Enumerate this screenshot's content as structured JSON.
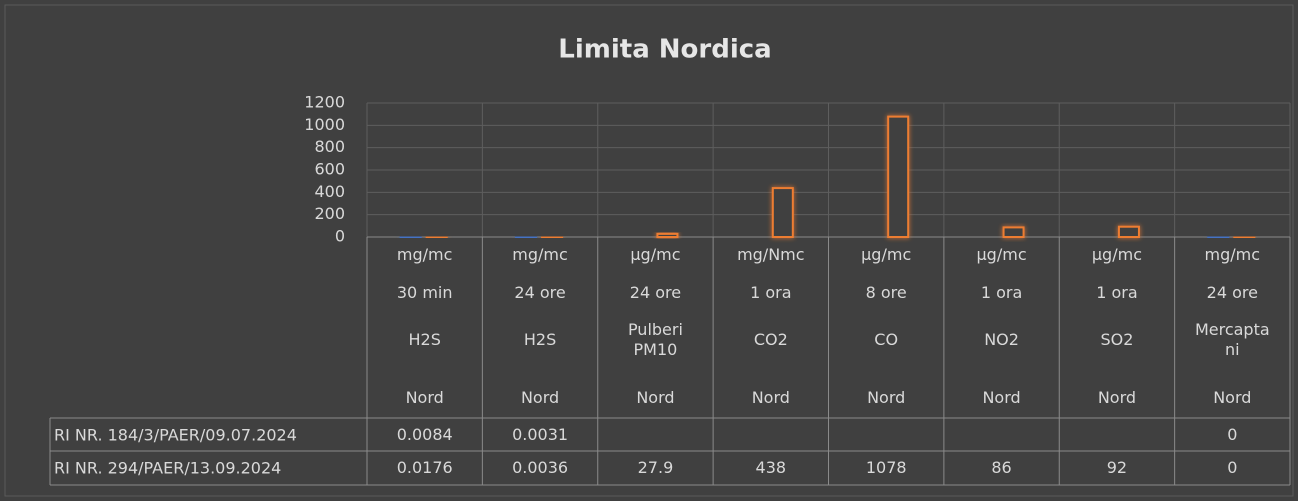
{
  "chart_data": {
    "type": "bar",
    "title": "Limita Nordica",
    "categories": [
      [
        "mg/mc",
        "30 min",
        "H2S",
        "Nord"
      ],
      [
        "mg/mc",
        "24 ore",
        "H2S",
        "Nord"
      ],
      [
        "µg/mc",
        "24 ore",
        "Pulberi PM10",
        "Nord"
      ],
      [
        "mg/Nmc",
        "1 ora",
        "CO2",
        "Nord"
      ],
      [
        "µg/mc",
        "8 ore",
        "CO",
        "Nord"
      ],
      [
        "µg/mc",
        "1 ora",
        "NO2",
        "Nord"
      ],
      [
        "µg/mc",
        "1 ora",
        "SO2",
        "Nord"
      ],
      [
        "mg/mc",
        "24 ore",
        "Mercaptani",
        "Nord"
      ]
    ],
    "series": [
      {
        "name": "RI NR. 184/3/PAER/09.07.2024",
        "color": "#4472c4",
        "values": [
          0.0084,
          0.0031,
          null,
          null,
          null,
          null,
          null,
          0
        ]
      },
      {
        "name": "RI NR. 294/PAER/13.09.2024",
        "color": "#ed7d31",
        "values": [
          0.0176,
          0.0036,
          27.9,
          438,
          1078,
          86,
          92,
          0
        ]
      }
    ],
    "ylim": [
      0,
      1200
    ],
    "yticks": [
      0,
      200,
      400,
      600,
      800,
      1000,
      1200
    ],
    "grid": true
  }
}
